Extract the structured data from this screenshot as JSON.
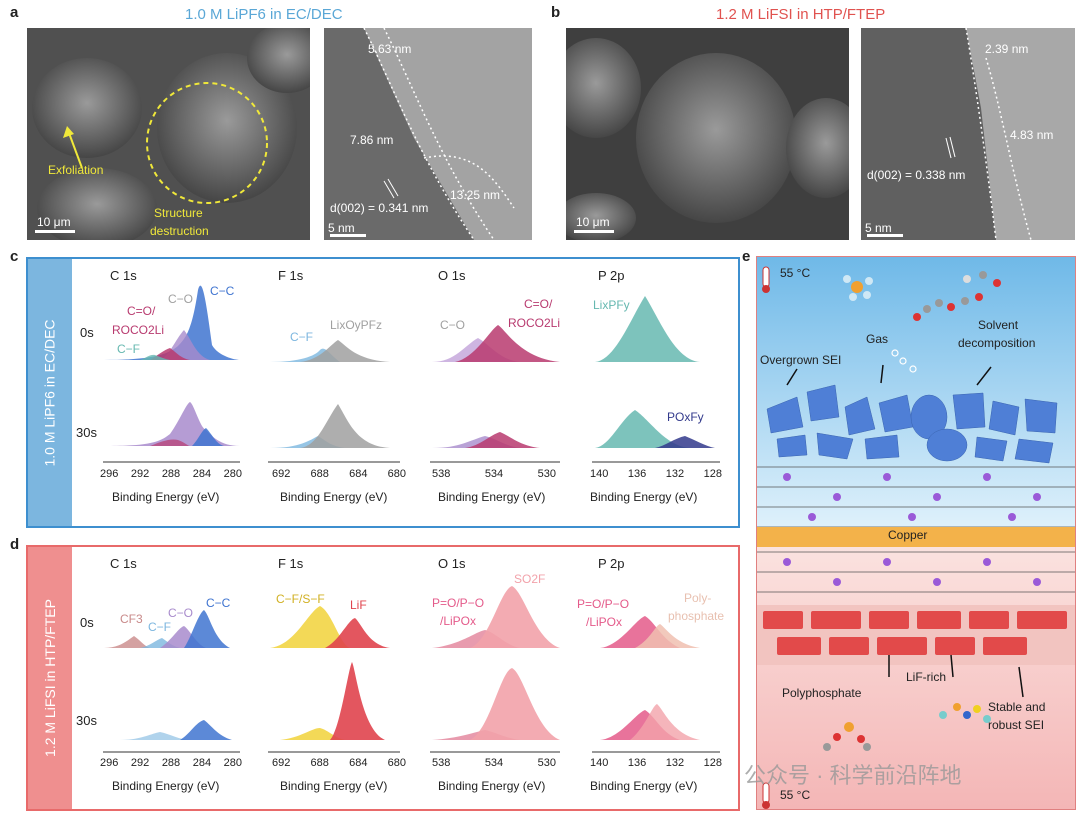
{
  "panel_a": {
    "label": "a",
    "title": "1.0 M LiPF6 in EC/DEC",
    "sem_scale": "10 μm",
    "tem_scale": "5 nm",
    "exfoliation": "Exfoliation",
    "structure": "Structure",
    "destruction": "destruction",
    "m1": "5.63 nm",
    "m2": "7.86 nm",
    "m3": "13.25 nm",
    "dspacing": "d(002) = 0.341 nm"
  },
  "panel_b": {
    "label": "b",
    "title": "1.2 M LiFSI in HTP/FTEP",
    "sem_scale": "10 μm",
    "tem_scale": "5 nm",
    "m1": "2.39 nm",
    "m2": "4.83 nm",
    "dspacing": "d(002) = 0.338 nm"
  },
  "panel_c": {
    "label": "c",
    "side": "1.0 M LiPF6 in EC/DEC",
    "heads": [
      "C 1s",
      "F 1s",
      "O 1s",
      "P 2p"
    ],
    "rows": [
      "0s",
      "30s"
    ],
    "ticks": [
      [
        "296",
        "292",
        "288",
        "284",
        "280"
      ],
      [
        "692",
        "688",
        "684",
        "680"
      ],
      [
        "538",
        "534",
        "530"
      ],
      [
        "140",
        "136",
        "132",
        "128"
      ]
    ],
    "xlabel": "Binding Energy (eV)",
    "labels": {
      "c_co": "C=O/",
      "c_roco": "ROCO2Li",
      "c_cf": "C−F",
      "c_c_o": "C−O",
      "c_cc": "C−C",
      "f_cf": "C−F",
      "f_lioypfz": "LixOyPFz",
      "o_co": "C−O",
      "o_co2": "C=O/",
      "o_roco": "ROCO2Li",
      "p_lipf": "LixPFy",
      "p_po": "POxFy"
    }
  },
  "panel_d": {
    "label": "d",
    "side": "1.2 M LiFSI in HTP/FTEP",
    "heads": [
      "C 1s",
      "F 1s",
      "O 1s",
      "P 2p"
    ],
    "rows": [
      "0s",
      "30s"
    ],
    "ticks": [
      [
        "296",
        "292",
        "288",
        "284",
        "280"
      ],
      [
        "692",
        "688",
        "684",
        "680"
      ],
      [
        "538",
        "534",
        "530"
      ],
      [
        "140",
        "136",
        "132",
        "128"
      ]
    ],
    "xlabel": "Binding Energy (eV)",
    "labels": {
      "cf3": "CF3",
      "cf": "C−F",
      "co": "C−O",
      "cc": "C−C",
      "f_cfsf": "C−F/S−F",
      "f_lif": "LiF",
      "o_p1": "P=O/P−O",
      "o_p2": "/LiPOx",
      "o_so2f": "SO2F",
      "p_p1": "P=O/P−O",
      "p_p2": "/LiPOx",
      "p_poly1": "Poly-",
      "p_poly2": "phosphate"
    }
  },
  "panel_e": {
    "label": "e",
    "temp_top": "55 °C",
    "temp_bottom": "55 °C",
    "gas": "Gas",
    "solvent": "Solvent",
    "decomposition": "decomposition",
    "overgrown": "Overgrown SEI",
    "copper": "Copper",
    "polyphosphate": "Polyphosphate",
    "lif_rich": "LiF-rich",
    "stable1": "Stable and",
    "stable2": "robust SEI"
  },
  "watermark": "公众号 · 科学前沿阵地",
  "colors": {
    "blue_title": "#5aa7d6",
    "red_title": "#e0524f",
    "box_blue": "#3d8fcf",
    "box_red": "#e86a6a",
    "cc_blue": "#3f74d0",
    "purple": "#a88bcc",
    "magenta": "#b83a6f",
    "teal": "#66b8b0",
    "navy": "#333a8c",
    "gray": "#a0a0a0",
    "yellow": "#f1d23a",
    "red": "#e0444e",
    "pink": "#f2a2aa"
  }
}
